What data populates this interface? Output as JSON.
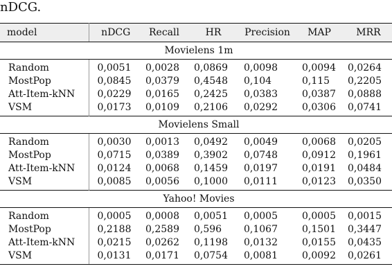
{
  "caption_tail": "nDCG.",
  "table": {
    "headers": [
      "model",
      "nDCG",
      "Recall",
      "HR",
      "Precision",
      "MAP",
      "MRR"
    ],
    "sections": [
      {
        "title": "Movielens 1m",
        "rows": [
          [
            "Random",
            "0,0051",
            "0,0028",
            "0,0869",
            "0,0098",
            "0,0094",
            "0,0264"
          ],
          [
            "MostPop",
            "0,0845",
            "0,0379",
            "0,4548",
            "0,104",
            "0,115",
            "0,2205"
          ],
          [
            "Att-Item-kNN",
            "0,0229",
            "0,0165",
            "0,2425",
            "0,0383",
            "0,0387",
            "0,0888"
          ],
          [
            "VSM",
            "0,0173",
            "0,0109",
            "0,2106",
            "0,0292",
            "0,0306",
            "0,0741"
          ]
        ]
      },
      {
        "title": "Movielens Small",
        "rows": [
          [
            "Random",
            "0,0030",
            "0,0013",
            "0,0492",
            "0,0049",
            "0,0068",
            "0,0205"
          ],
          [
            "MostPop",
            "0,0715",
            "0,0389",
            "0,3902",
            "0,0748",
            "0,0912",
            "0,1961"
          ],
          [
            "Att-Item-kNN",
            "0,0124",
            "0,0068",
            "0,1459",
            "0,0197",
            "0,0191",
            "0,0484"
          ],
          [
            "VSM",
            "0,0085",
            "0,0056",
            "0,1000",
            "0,0111",
            "0,0123",
            "0,0350"
          ]
        ]
      },
      {
        "title": "Yahoo! Movies",
        "rows": [
          [
            "Random",
            "0,0005",
            "0,0008",
            "0,0051",
            "0,0005",
            "0,0005",
            "0,0015"
          ],
          [
            "MostPop",
            "0,2188",
            "0,2589",
            "0,596",
            "0,1067",
            "0,1501",
            "0,3447"
          ],
          [
            "Att-Item-kNN",
            "0,0215",
            "0,0262",
            "0,1198",
            "0,0132",
            "0,0155",
            "0,0435"
          ],
          [
            "VSM",
            "0,0131",
            "0,0171",
            "0,0754",
            "0,0081",
            "0,0092",
            "0,0261"
          ]
        ]
      }
    ]
  }
}
